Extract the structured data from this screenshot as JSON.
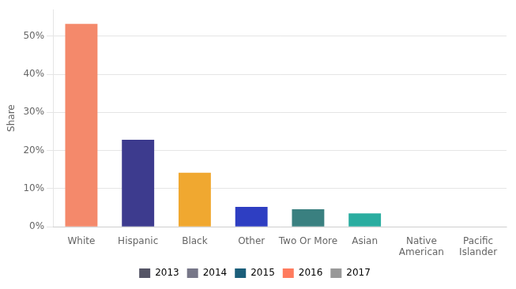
{
  "chart_data": {
    "type": "bar",
    "categories": [
      "White",
      "Hispanic",
      "Black",
      "Other",
      "Two Or More",
      "Asian",
      "Native\nAmerican",
      "Pacific\nIslander"
    ],
    "values": [
      53.2,
      22.8,
      14.2,
      5.2,
      4.6,
      3.5,
      0.0,
      0.0
    ],
    "colors": [
      "#F4896B",
      "#3D3B8E",
      "#F0A830",
      "#2E3EC2",
      "#3A8080",
      "#2AADA0",
      "#111111",
      "#111111"
    ],
    "y_label": "Share",
    "ylim": [
      0,
      57
    ],
    "yticks": [
      {
        "value": 0,
        "label": "0%"
      },
      {
        "value": 10,
        "label": "10%"
      },
      {
        "value": 20,
        "label": "20%"
      },
      {
        "value": 30,
        "label": "30%"
      },
      {
        "value": 40,
        "label": "40%"
      },
      {
        "value": 50,
        "label": "50%"
      }
    ],
    "grid": true,
    "legend": "bottom",
    "annotations": [
      {
        "text": "2013",
        "color": "#555566"
      },
      {
        "text": "2014",
        "color": "#777788"
      },
      {
        "text": "2015",
        "color": "#1B5E7A"
      },
      {
        "text": "2016",
        "color": "#FF7B5E"
      },
      {
        "text": "2017",
        "color": "#999999"
      }
    ]
  }
}
